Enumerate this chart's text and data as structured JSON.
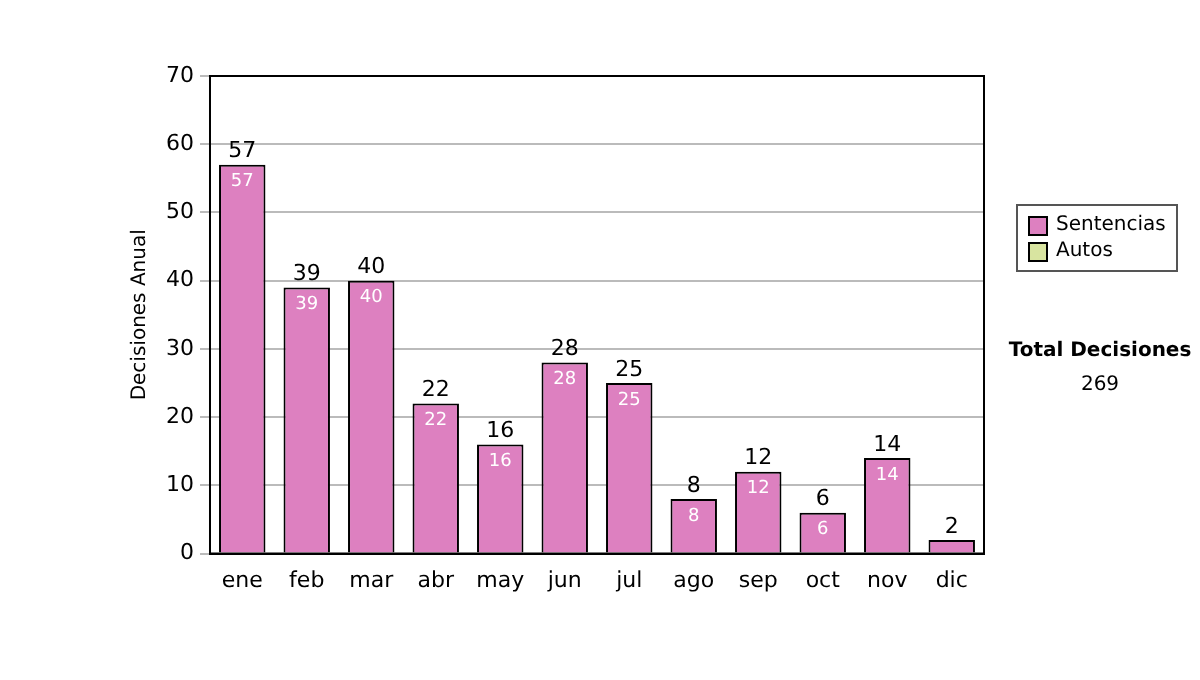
{
  "chart_data": {
    "type": "bar",
    "stacked": true,
    "ylabel": "Decisiones Anual",
    "categories": [
      "ene",
      "feb",
      "mar",
      "abr",
      "may",
      "jun",
      "jul",
      "ago",
      "sep",
      "oct",
      "nov",
      "dic"
    ],
    "series": [
      {
        "name": "Sentencias",
        "color": "#dd80c0",
        "values": [
          57,
          39,
          40,
          22,
          16,
          28,
          25,
          8,
          12,
          6,
          14,
          2
        ],
        "value_labels": [
          "57",
          "39",
          "40",
          "22",
          "16",
          "28",
          "25",
          "8",
          "12",
          "6",
          "14",
          null
        ]
      },
      {
        "name": "Autos",
        "color": "#d8e4a0",
        "values": [
          0,
          0,
          0,
          0,
          0,
          0,
          0,
          0,
          0,
          0,
          0,
          0
        ]
      }
    ],
    "totals": [
      "57",
      "39",
      "40",
      "22",
      "16",
      "28",
      "25",
      "8",
      "12",
      "6",
      "14",
      "2"
    ],
    "ylim": [
      0,
      70
    ],
    "yticks": [
      0,
      10,
      20,
      30,
      40,
      50,
      60,
      70
    ],
    "grid": "y",
    "legend": "right",
    "annotations": [
      "Total Decisiones",
      "269"
    ]
  }
}
